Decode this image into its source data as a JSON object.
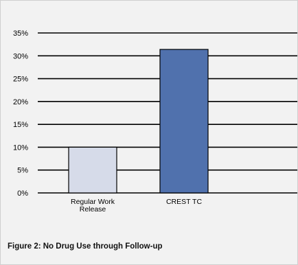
{
  "caption": "Figure 2: No Drug Use through Follow-up",
  "chart_data": {
    "type": "bar",
    "categories": [
      [
        "Regular Work",
        "Release"
      ],
      [
        "CREST TC"
      ]
    ],
    "values": [
      10,
      31.4
    ],
    "ylim": [
      0,
      35
    ],
    "yticks": [
      0,
      5,
      10,
      15,
      20,
      25,
      30,
      35
    ],
    "ytick_labels": [
      "0%",
      "5%",
      "10%",
      "15%",
      "20%",
      "25%",
      "30%",
      "35%"
    ],
    "grid": true,
    "colors": [
      "#d6dbe9",
      "#5071ad"
    ],
    "title": "",
    "xlabel": "",
    "ylabel": ""
  }
}
